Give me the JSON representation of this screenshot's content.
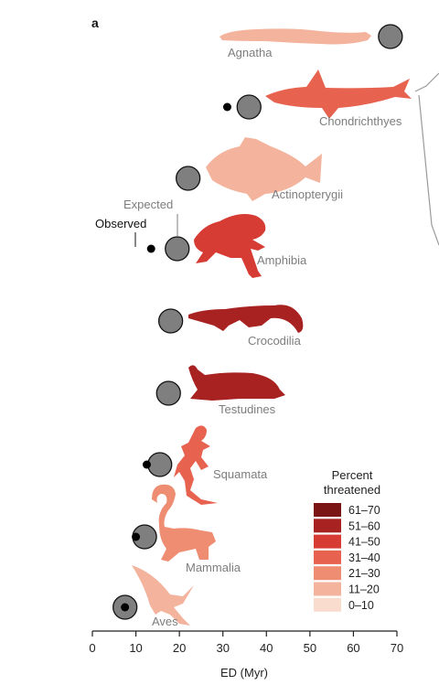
{
  "chart_data": {
    "type": "scatter",
    "panel_label": "a",
    "xlabel": "ED (Myr)",
    "xlim": [
      0,
      70
    ],
    "x_ticks": [
      0,
      10,
      20,
      30,
      40,
      50,
      60,
      70
    ],
    "markers": {
      "expected": "Expected",
      "observed": "Observed"
    },
    "clades": [
      {
        "name": "Agnatha",
        "expected": 68.5,
        "observed": null,
        "threatened_band": "11–20"
      },
      {
        "name": "Chondrichthyes",
        "expected": 36.0,
        "observed": 31.0,
        "threatened_band": "31–40"
      },
      {
        "name": "Actinopterygii",
        "expected": 22.0,
        "observed": null,
        "threatened_band": "11–20"
      },
      {
        "name": "Amphibia",
        "expected": 19.5,
        "observed": 13.5,
        "threatened_band": "41–50"
      },
      {
        "name": "Crocodilia",
        "expected": 18.0,
        "observed": null,
        "threatened_band": "51–60"
      },
      {
        "name": "Testudines",
        "expected": 17.5,
        "observed": null,
        "threatened_band": "51–60"
      },
      {
        "name": "Squamata",
        "expected": 15.5,
        "observed": 12.5,
        "threatened_band": "31–40"
      },
      {
        "name": "Mammalia",
        "expected": 12.0,
        "observed": 10.0,
        "threatened_band": "21–30"
      },
      {
        "name": "Aves",
        "expected": 7.5,
        "observed": 7.5,
        "threatened_band": "11–20"
      }
    ],
    "legend": {
      "title_line1": "Percent",
      "title_line2": "threatened",
      "placement": "bottom-right",
      "bins": [
        {
          "label": "61–70",
          "color": "#7b1415"
        },
        {
          "label": "51–60",
          "color": "#a82222"
        },
        {
          "label": "41–50",
          "color": "#d63c34"
        },
        {
          "label": "31–40",
          "color": "#e7634f"
        },
        {
          "label": "21–30",
          "color": "#ee8d72"
        },
        {
          "label": "11–20",
          "color": "#f4b39c"
        },
        {
          "label": "0–10",
          "color": "#f9dccd"
        }
      ]
    },
    "colors": {
      "expected_fill": "#7f7f7f",
      "observed_fill": "#000000",
      "label_gray": "#7d7d7d"
    }
  }
}
